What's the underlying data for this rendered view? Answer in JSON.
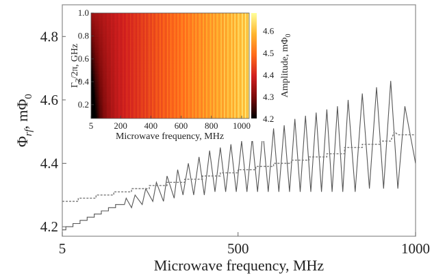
{
  "chart_data": [
    {
      "type": "line",
      "xlabel": "Microwave frequency, MHz",
      "ylabel_main": "Φ",
      "ylabel_sub": "rf",
      "ylabel_unit": ", mΦ",
      "ylabel_unit_sub": "0",
      "xlim": [
        5,
        1000
      ],
      "ylim": [
        4.17,
        4.9
      ],
      "x_ticks": [
        5,
        500,
        1000
      ],
      "x_tick_labels": [
        "5",
        "500",
        "1000"
      ],
      "y_ticks": [
        4.2,
        4.4,
        4.6,
        4.8
      ],
      "y_tick_labels": [
        "4.2",
        "4.4",
        "4.6",
        "4.8"
      ],
      "series": [
        {
          "style": "solid",
          "color": "#555555",
          "description_visible": false,
          "x": [
            5,
            15,
            15,
            35,
            35,
            55,
            55,
            75,
            75,
            95,
            95,
            115,
            115,
            135,
            135,
            155,
            155,
            180,
            185,
            200,
            210,
            230,
            240,
            260,
            270,
            290,
            300,
            320,
            330,
            345,
            360,
            375,
            390,
            405,
            420,
            435,
            450,
            465,
            480,
            495,
            510,
            525,
            540,
            555,
            570,
            585,
            600,
            615,
            630,
            645,
            660,
            675,
            690,
            705,
            720,
            735,
            750,
            765,
            780,
            795,
            810,
            830,
            850,
            870,
            890,
            910,
            930,
            950,
            970,
            990,
            1000
          ],
          "y": [
            4.19,
            4.19,
            4.2,
            4.2,
            4.21,
            4.21,
            4.22,
            4.22,
            4.23,
            4.23,
            4.24,
            4.24,
            4.25,
            4.25,
            4.26,
            4.26,
            4.27,
            4.27,
            4.29,
            4.26,
            4.3,
            4.27,
            4.32,
            4.28,
            4.34,
            4.28,
            4.36,
            4.29,
            4.38,
            4.3,
            4.4,
            4.3,
            4.42,
            4.3,
            4.44,
            4.31,
            4.45,
            4.31,
            4.46,
            4.31,
            4.47,
            4.31,
            4.48,
            4.31,
            4.5,
            4.31,
            4.51,
            4.31,
            4.52,
            4.31,
            4.54,
            4.31,
            4.55,
            4.31,
            4.56,
            4.31,
            4.57,
            4.31,
            4.58,
            4.31,
            4.6,
            4.31,
            4.62,
            4.32,
            4.64,
            4.32,
            4.66,
            4.32,
            4.58,
            4.46,
            4.4
          ]
        },
        {
          "style": "dashed",
          "color": "#777777",
          "x": [
            5,
            50,
            50,
            100,
            100,
            150,
            150,
            200,
            200,
            250,
            250,
            300,
            300,
            350,
            350,
            400,
            400,
            450,
            450,
            500,
            500,
            550,
            550,
            600,
            600,
            650,
            650,
            700,
            700,
            750,
            750,
            800,
            800,
            850,
            850,
            900,
            900,
            930,
            940,
            950,
            1000
          ],
          "y": [
            4.28,
            4.28,
            4.29,
            4.29,
            4.3,
            4.3,
            4.31,
            4.31,
            4.32,
            4.32,
            4.33,
            4.33,
            4.34,
            4.34,
            4.35,
            4.35,
            4.36,
            4.36,
            4.37,
            4.37,
            4.38,
            4.38,
            4.39,
            4.39,
            4.4,
            4.4,
            4.41,
            4.41,
            4.42,
            4.42,
            4.43,
            4.43,
            4.45,
            4.45,
            4.46,
            4.46,
            4.47,
            4.47,
            4.5,
            4.49,
            4.49
          ]
        }
      ]
    },
    {
      "type": "heatmap",
      "xlabel": "Microwave frequency, MHz",
      "ylabel": "Γ",
      "ylabel_rest": "/2π, GHz",
      "ylabel_sub": "2",
      "colorbar_label": "Amplitude, mΦ",
      "colorbar_label_sub": "0",
      "xlim": [
        5,
        1050
      ],
      "ylim": [
        0.08,
        1.0
      ],
      "x_tick_labels": [
        "5",
        "200",
        "400",
        "600",
        "800",
        "1000"
      ],
      "x_ticks": [
        5,
        200,
        400,
        600,
        800,
        1000
      ],
      "y_tick_labels": [
        "0.2",
        "0.4",
        "0.6",
        "0.8",
        "1.0"
      ],
      "y_ticks": [
        0.2,
        0.4,
        0.6,
        0.8,
        1.0
      ],
      "colorbar_ticks": [
        4.2,
        4.3,
        4.4,
        4.5,
        4.6
      ],
      "colorbar_tick_labels": [
        "4.2",
        "4.3",
        "4.4",
        "4.5",
        "4.6"
      ],
      "colorbar_range": [
        4.2,
        4.68
      ],
      "colormap": [
        "#000000",
        "#7a0a0a",
        "#d11f1f",
        "#ff6a1a",
        "#ffb52e",
        "#ffff99"
      ]
    }
  ]
}
